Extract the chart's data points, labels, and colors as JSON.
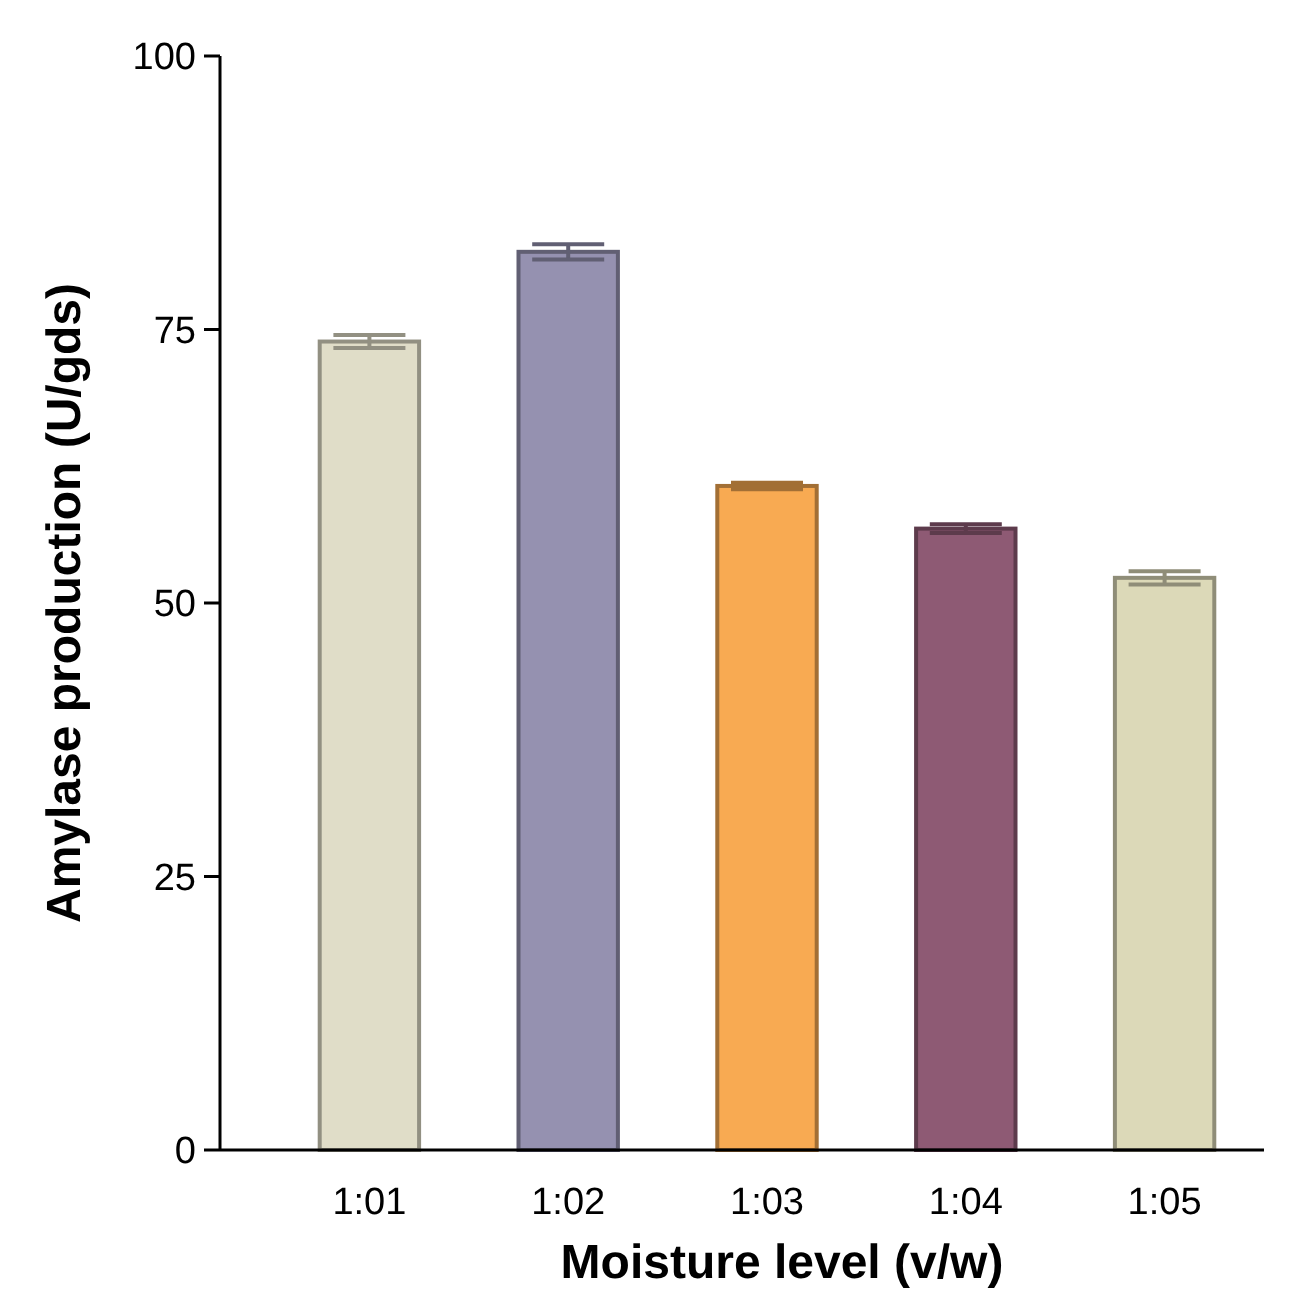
{
  "chart_data": {
    "type": "bar",
    "xlabel": "Moisture level (v/w)",
    "ylabel": "Amylase production (U/gds)",
    "categories": [
      "1:01",
      "1:02",
      "1:03",
      "1:04",
      "1:05"
    ],
    "values": [
      73.9,
      82.1,
      60.7,
      56.8,
      52.3
    ],
    "errors": [
      0.6,
      0.7,
      0.3,
      0.4,
      0.6
    ],
    "colors": [
      "#e0ddc8",
      "#9591b0",
      "#f8aa52",
      "#8e5a74",
      "#dcd9b8"
    ],
    "ylim": [
      0,
      100
    ],
    "yticks": [
      0,
      25,
      50,
      75,
      100
    ],
    "grid": false
  }
}
